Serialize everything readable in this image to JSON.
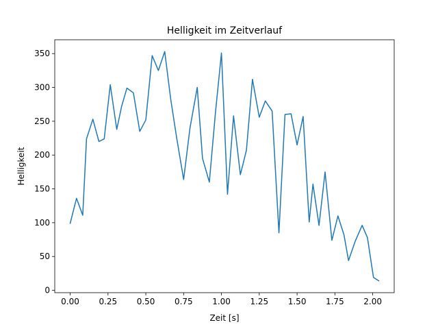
{
  "chart_data": {
    "type": "line",
    "title": "Helligkeit im Zeitverlauf",
    "xlabel": "Zeit [s]",
    "ylabel": "Helligkeit",
    "xlim": [
      -0.102,
      2.142
    ],
    "ylim": [
      -3.5,
      370.5
    ],
    "x_ticks": [
      0.0,
      0.25,
      0.5,
      0.75,
      1.0,
      1.25,
      1.5,
      1.75,
      2.0
    ],
    "x_tick_labels": [
      "0.00",
      "0.25",
      "0.50",
      "0.75",
      "1.00",
      "1.25",
      "1.50",
      "1.75",
      "2.00"
    ],
    "y_ticks": [
      0,
      50,
      100,
      150,
      200,
      250,
      300,
      350
    ],
    "y_tick_labels": [
      "0",
      "50",
      "100",
      "150",
      "200",
      "250",
      "300",
      "350"
    ],
    "grid": false,
    "series": [
      {
        "color": "#1f77b4",
        "x": [
          0.0,
          0.042,
          0.083,
          0.108,
          0.15,
          0.19,
          0.225,
          0.265,
          0.308,
          0.34,
          0.375,
          0.418,
          0.46,
          0.5,
          0.542,
          0.583,
          0.625,
          0.665,
          0.705,
          0.75,
          0.792,
          0.84,
          0.875,
          0.92,
          0.96,
          1.0,
          1.04,
          1.08,
          1.125,
          1.165,
          1.205,
          1.25,
          1.29,
          1.335,
          1.38,
          1.42,
          1.46,
          1.5,
          1.54,
          1.58,
          1.605,
          1.645,
          1.685,
          1.73,
          1.77,
          1.81,
          1.84,
          1.885,
          1.93,
          1.965,
          2.005,
          2.04
        ],
        "y": [
          99,
          136,
          111,
          224,
          253,
          220,
          224,
          304,
          238,
          272,
          299,
          292,
          235,
          252,
          347,
          325,
          353,
          282,
          224,
          164,
          240,
          300,
          195,
          160,
          262,
          351,
          142,
          258,
          171,
          207,
          312,
          256,
          280,
          265,
          85,
          260,
          261,
          215,
          257,
          101,
          157,
          96,
          175,
          74,
          110,
          82,
          44,
          73,
          96,
          78,
          19,
          14
        ]
      }
    ]
  }
}
